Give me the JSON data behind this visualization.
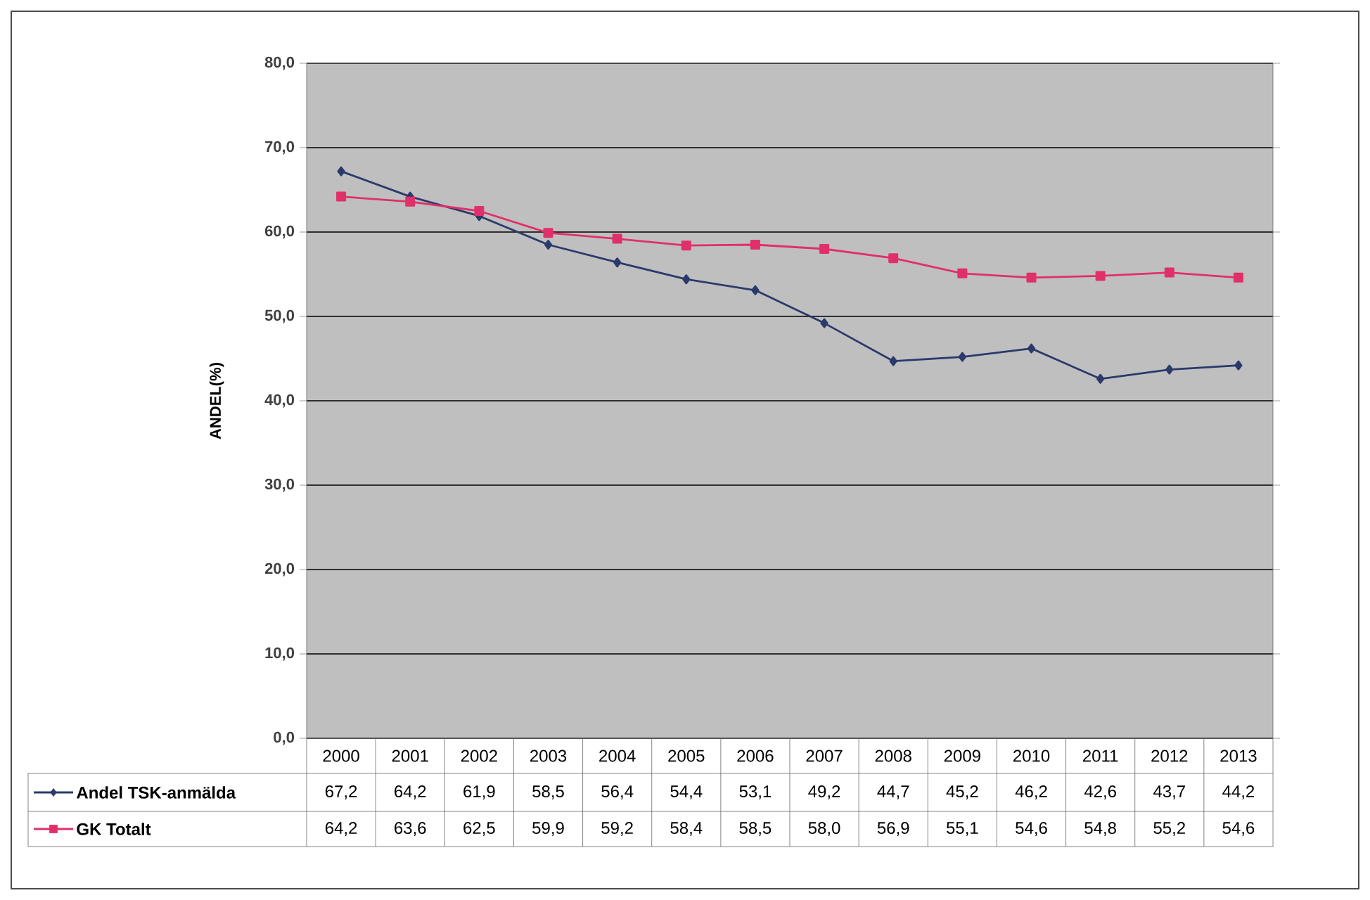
{
  "chart_data": {
    "type": "line",
    "ylabel": "ANDEL(%)",
    "categories": [
      "2000",
      "2001",
      "2002",
      "2003",
      "2004",
      "2005",
      "2006",
      "2007",
      "2008",
      "2009",
      "2010",
      "2011",
      "2012",
      "2013"
    ],
    "series": [
      {
        "name": "Andel TSK-anmälda",
        "color": "#2b3a6b",
        "marker": "diamond",
        "values": [
          67.2,
          64.2,
          61.9,
          58.5,
          56.4,
          54.4,
          53.1,
          49.2,
          44.7,
          45.2,
          46.2,
          42.6,
          43.7,
          44.2
        ],
        "value_labels": [
          "67,2",
          "64,2",
          "61,9",
          "58,5",
          "56,4",
          "54,4",
          "53,1",
          "49,2",
          "44,7",
          "45,2",
          "46,2",
          "42,6",
          "43,7",
          "44,2"
        ]
      },
      {
        "name": "GK Totalt",
        "color": "#e0306a",
        "marker": "square",
        "values": [
          64.2,
          63.6,
          62.5,
          59.9,
          59.2,
          58.4,
          58.5,
          58.0,
          56.9,
          55.1,
          54.6,
          54.8,
          55.2,
          54.6
        ],
        "value_labels": [
          "64,2",
          "63,6",
          "62,5",
          "59,9",
          "59,2",
          "58,4",
          "58,5",
          "58,0",
          "56,9",
          "55,1",
          "54,6",
          "54,8",
          "55,2",
          "54,6"
        ]
      }
    ],
    "ylim": [
      0,
      80
    ],
    "yticks": [
      {
        "value": 0,
        "label": "0,0"
      },
      {
        "value": 10,
        "label": "10,0"
      },
      {
        "value": 20,
        "label": "20,0"
      },
      {
        "value": 30,
        "label": "30,0"
      },
      {
        "value": 40,
        "label": "40,0"
      },
      {
        "value": 50,
        "label": "50,0"
      },
      {
        "value": 60,
        "label": "60,0"
      },
      {
        "value": 70,
        "label": "70,0"
      },
      {
        "value": 80,
        "label": "80,0"
      }
    ],
    "grid": "y",
    "legend": "bottom",
    "line_style": "solid"
  }
}
